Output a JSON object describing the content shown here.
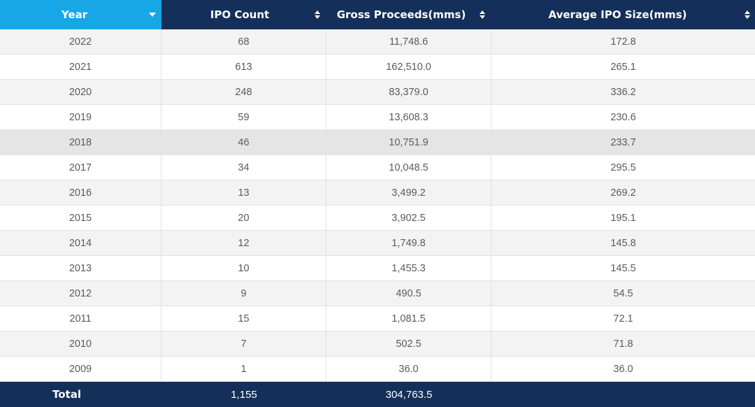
{
  "table": {
    "columns": [
      {
        "label": "Year",
        "sort_icon": "sort-desc-icon"
      },
      {
        "label": "IPO Count",
        "sort_icon": "sort-icon"
      },
      {
        "label": "Gross Proceeds(mms)",
        "sort_icon": "sort-icon"
      },
      {
        "label": "Average IPO Size(mms)",
        "sort_icon": "sort-icon"
      }
    ],
    "rows": [
      [
        "2022",
        "68",
        "11,748.6",
        "172.8"
      ],
      [
        "2021",
        "613",
        "162,510.0",
        "265.1"
      ],
      [
        "2020",
        "248",
        "83,379.0",
        "336.2"
      ],
      [
        "2019",
        "59",
        "13,608.3",
        "230.6"
      ],
      [
        "2018",
        "46",
        "10,751.9",
        "233.7"
      ],
      [
        "2017",
        "34",
        "10,048.5",
        "295.5"
      ],
      [
        "2016",
        "13",
        "3,499.2",
        "269.2"
      ],
      [
        "2015",
        "20",
        "3,902.5",
        "195.1"
      ],
      [
        "2014",
        "12",
        "1,749.8",
        "145.8"
      ],
      [
        "2013",
        "10",
        "1,455.3",
        "145.5"
      ],
      [
        "2012",
        "9",
        "490.5",
        "54.5"
      ],
      [
        "2011",
        "15",
        "1,081.5",
        "72.1"
      ],
      [
        "2010",
        "7",
        "502.5",
        "71.8"
      ],
      [
        "2009",
        "1",
        "36.0",
        "36.0"
      ]
    ],
    "footer": [
      "Total",
      "1,155",
      "304,763.5",
      ""
    ]
  },
  "colors": {
    "header_bg": "#142f59",
    "active_header_bg": "#17a6e6",
    "row_alt_bg": "#f3f3f3",
    "row_highlight_bg": "#e5e5e5",
    "cell_text": "#5a5a5a"
  },
  "sorted_column": "Year",
  "highlighted_row": "2018"
}
